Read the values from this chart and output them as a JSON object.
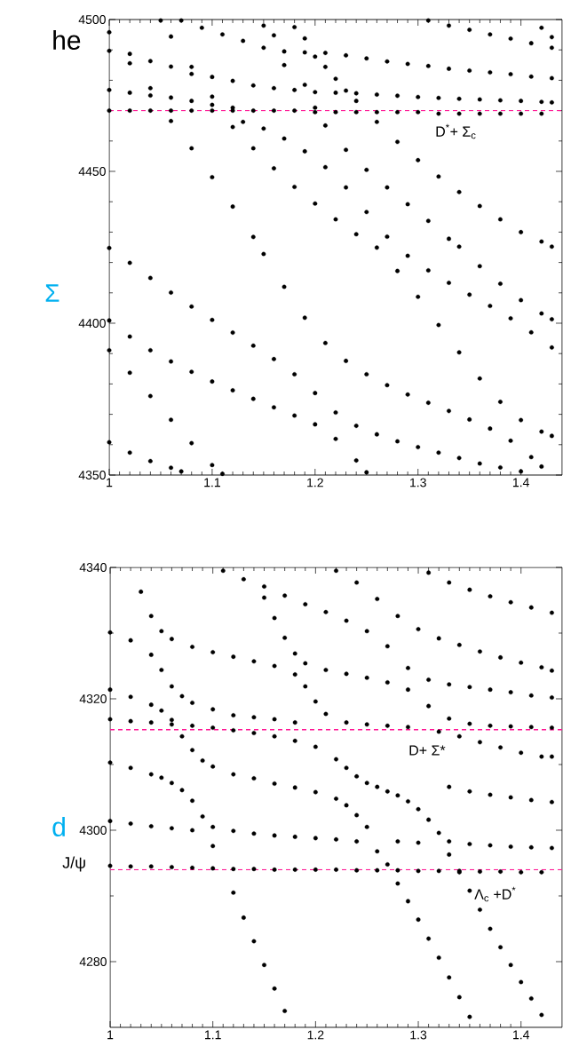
{
  "chart_data": [
    {
      "type": "scatter",
      "xlim": [
        1,
        1.44
      ],
      "ylim": [
        4350,
        4500
      ],
      "xticks": [
        1,
        1.1,
        1.2,
        1.3,
        1.4
      ],
      "yticks": [
        4350,
        4400,
        4450,
        4500
      ],
      "marker": "circle",
      "ref_lines": [
        {
          "axis": "y",
          "value": 4470,
          "color": "#ff1493",
          "line_style": "dashed"
        }
      ],
      "annotations": [
        "D$^{*}$+ Σ$_{c}$",
        "he",
        "Σ"
      ],
      "series": [
        {
          "color": "#000000",
          "x": [
            1,
            1.02,
            1.04,
            1.06,
            1.08,
            1.1,
            1.12,
            1.14,
            1.16,
            1.18,
            1.2,
            1.22,
            1.24,
            1.26,
            1.28,
            1.3,
            1.32,
            1.34,
            1.36,
            1.38,
            1.4,
            1.42
          ],
          "values": [
            4470,
            4470,
            4470,
            4470,
            4470,
            4470,
            4470,
            4470,
            4470,
            4470,
            4469.5,
            4469.5,
            4469.5,
            4469.5,
            4469.5,
            4469.5,
            4469,
            4469,
            4469,
            4469,
            4469,
            4469
          ]
        },
        {
          "color": "#000000",
          "x": [
            1,
            1.02,
            1.04,
            1.06,
            1.08,
            1.1,
            1.12
          ],
          "values": [
            4476.8,
            4475.9,
            4475,
            4474.3,
            4473.2,
            4471.9,
            4471
          ]
        },
        {
          "color": "#000000",
          "x": [
            1,
            1.02,
            1.04,
            1.06,
            1.08,
            1.1,
            1.12,
            1.14,
            1.16,
            1.18,
            1.2,
            1.22,
            1.24,
            1.26,
            1.28,
            1.3,
            1.32,
            1.34,
            1.36,
            1.38,
            1.4,
            1.42,
            1.43
          ],
          "values": [
            4489.7,
            4488.7,
            4486.3,
            4484.5,
            4482.1,
            4481.1,
            4479.8,
            4478.3,
            4477.4,
            4476.8,
            4476.1,
            4475.9,
            4475.7,
            4475.3,
            4474.9,
            4474.5,
            4474.2,
            4473.9,
            4473.7,
            4473.4,
            4473.2,
            4472.9,
            4472.7
          ]
        },
        {
          "color": "#000000",
          "x": [
            1.07,
            1.09,
            1.11,
            1.13,
            1.15,
            1.17,
            1.19,
            1.21,
            1.23,
            1.25,
            1.27,
            1.29,
            1.31,
            1.33,
            1.35,
            1.37,
            1.39,
            1.41,
            1.43
          ],
          "values": [
            4499.7,
            4497.3,
            4495.1,
            4493,
            4490.7,
            4489.5,
            4489.2,
            4489,
            4488.2,
            4487.2,
            4486.2,
            4485.4,
            4484.7,
            4483.8,
            4483.2,
            4482.6,
            4482,
            4481.2,
            4480.7
          ]
        },
        {
          "color": "#000000",
          "x": [
            1.31,
            1.33,
            1.35,
            1.37,
            1.39,
            1.41,
            1.43
          ],
          "values": [
            4499.7,
            4498,
            4496.6,
            4495.1,
            4493.7,
            4492.2,
            4490.7
          ]
        },
        {
          "color": "#000000",
          "x": [
            1.42,
            1.43
          ],
          "values": [
            4497.3,
            4494.2
          ]
        },
        {
          "color": "#000000",
          "x": [
            1,
            1.02,
            1.04,
            1.06,
            1.08,
            1.1,
            1.12,
            1.14,
            1.15,
            1.17,
            1.19,
            1.21,
            1.23,
            1.25,
            1.27,
            1.29,
            1.31,
            1.33,
            1.35,
            1.37,
            1.39,
            1.41,
            1.42
          ],
          "values": [
            4495.8,
            4485.6,
            4477.4,
            4466.6,
            4457.6,
            4448.1,
            4438.4,
            4428.4,
            4422.8,
            4412,
            4401.8,
            4393.5,
            4387.6,
            4383.2,
            4379.6,
            4376.5,
            4373.8,
            4371.1,
            4368.3,
            4365.3,
            4361.3,
            4355.9,
            4352.8
          ]
        },
        {
          "color": "#000000",
          "x": [
            1.05,
            1.06,
            1.08,
            1.1,
            1.12,
            1.14,
            1.16,
            1.18,
            1.2,
            1.22,
            1.24,
            1.26,
            1.28,
            1.3,
            1.32,
            1.34,
            1.36,
            1.38,
            1.4,
            1.42,
            1.43
          ],
          "values": [
            4499.7,
            4494.4,
            4484.4,
            4474.6,
            4464.6,
            4457.6,
            4451,
            4444.9,
            4439.4,
            4434.2,
            4429.3,
            4424.9,
            4417.2,
            4408.7,
            4399.4,
            4390.4,
            4381.8,
            4374.1,
            4368.1,
            4364.3,
            4362.9
          ]
        },
        {
          "color": "#000000",
          "x": [
            1.13,
            1.15,
            1.17,
            1.19,
            1.21,
            1.23,
            1.25,
            1.27,
            1.29,
            1.31,
            1.33,
            1.35,
            1.37,
            1.39,
            1.41,
            1.43
          ],
          "values": [
            4466.3,
            4464.1,
            4460.8,
            4456.6,
            4451.4,
            4444.7,
            4436.6,
            4428.5,
            4422.2,
            4417.4,
            4413.3,
            4409.4,
            4405.7,
            4401.6,
            4397,
            4392
          ]
        },
        {
          "color": "#000000",
          "x": [
            1.2,
            1.21,
            1.23,
            1.25,
            1.27,
            1.29,
            1.31,
            1.33,
            1.34,
            1.36,
            1.38,
            1.4,
            1.42,
            1.43
          ],
          "values": [
            4471,
            4465.1,
            4457.1,
            4450.5,
            4444.7,
            4439.2,
            4433.7,
            4427.8,
            4425.2,
            4418.8,
            4413,
            4407.6,
            4403.2,
            4401.3
          ]
        },
        {
          "color": "#000000",
          "x": [
            1.26,
            1.28,
            1.3,
            1.32,
            1.34,
            1.36,
            1.38,
            1.4,
            1.42,
            1.43
          ],
          "values": [
            4466.3,
            4459.7,
            4453.7,
            4448.3,
            4443.2,
            4438.6,
            4434.2,
            4430,
            4426.9,
            4425.2
          ]
        },
        {
          "color": "#000000",
          "x": [
            1,
            1.02,
            1.04,
            1.06,
            1.08,
            1.1,
            1.12,
            1.14,
            1.16,
            1.18,
            1.2,
            1.22,
            1.24,
            1.26,
            1.28,
            1.3,
            1.32,
            1.34,
            1.36,
            1.38,
            1.4
          ],
          "values": [
            4424.8,
            4419.9,
            4414.9,
            4410.1,
            4405.5,
            4401.1,
            4396.9,
            4392.6,
            4388.2,
            4383.2,
            4377,
            4370.6,
            4366.2,
            4363.4,
            4361.1,
            4359.2,
            4357.4,
            4355.6,
            4353.8,
            4352.5,
            4351.2
          ]
        },
        {
          "color": "#000000",
          "x": [
            1,
            1.02,
            1.04,
            1.06,
            1.08,
            1.1,
            1.12,
            1.14,
            1.16,
            1.18,
            1.2,
            1.22,
            1.24,
            1.25
          ],
          "values": [
            4400.9,
            4395.6,
            4391.1,
            4387.4,
            4384,
            4380.8,
            4377.9,
            4375.1,
            4372.3,
            4369.6,
            4366.7,
            4361.9,
            4354.8,
            4350.9
          ]
        },
        {
          "color": "#000000",
          "x": [
            1,
            1.02,
            1.04,
            1.06,
            1.08,
            1.1,
            1.11
          ],
          "values": [
            4391.1,
            4383.7,
            4376,
            4368.2,
            4360.5,
            4353.3,
            4350.4
          ]
        },
        {
          "color": "#000000",
          "x": [
            1,
            1.02,
            1.04,
            1.06,
            1.07
          ],
          "values": [
            4360.8,
            4357.4,
            4354.6,
            4352.4,
            4351.2
          ]
        },
        {
          "color": "#000000",
          "x": [
            1.18,
            1.19,
            1.2,
            1.21,
            1.22,
            1.23,
            1.24
          ],
          "values": [
            4497.5,
            4493.8,
            4487.8,
            4484.4,
            4480.5,
            4476.6,
            4473.2
          ]
        },
        {
          "color": "#000000",
          "x": [
            1.15,
            1.16,
            1.17,
            1.19
          ],
          "values": [
            4498,
            4494.8,
            4485,
            4478.5
          ]
        }
      ]
    },
    {
      "type": "scatter",
      "xlim": [
        1,
        1.44
      ],
      "ylim": [
        4270,
        4340
      ],
      "xticks": [
        1,
        1.1,
        1.2,
        1.3,
        1.4
      ],
      "yticks": [
        4280,
        4300,
        4320,
        4340
      ],
      "marker": "circle",
      "ref_lines": [
        {
          "axis": "y",
          "value": 4315.3,
          "color": "#ff1493",
          "line_style": "dashed"
        },
        {
          "axis": "y",
          "value": 4294,
          "color": "#ff1493",
          "line_style": "dashed"
        }
      ],
      "annotations": [
        "D+ Σ*",
        "Λ$_{c}$ +D$^{*}$",
        "d",
        "J/ψ"
      ],
      "series": [
        {
          "color": "#000000",
          "x": [
            1,
            1.02,
            1.04,
            1.06,
            1.08,
            1.1,
            1.12,
            1.14,
            1.16,
            1.18,
            1.2,
            1.22,
            1.24,
            1.26,
            1.28,
            1.3,
            1.32,
            1.34,
            1.36,
            1.38,
            1.4,
            1.42
          ],
          "values": [
            4294.6,
            4294.5,
            4294.5,
            4294.4,
            4294.3,
            4294.2,
            4294.1,
            4294.1,
            4294,
            4294,
            4294,
            4294,
            4293.9,
            4293.9,
            4293.9,
            4293.8,
            4293.8,
            4293.8,
            4293.7,
            4293.7,
            4293.6,
            4293.6
          ]
        },
        {
          "color": "#000000",
          "x": [
            1,
            1.02,
            1.04,
            1.06,
            1.08,
            1.1,
            1.12,
            1.14,
            1.16,
            1.18,
            1.2,
            1.22,
            1.24,
            1.28,
            1.3,
            1.33,
            1.35,
            1.37,
            1.39,
            1.41,
            1.43
          ],
          "values": [
            4301.4,
            4301,
            4300.6,
            4300.3,
            4300,
            4300.5,
            4299.9,
            4299.5,
            4299.2,
            4299,
            4298.8,
            4298.6,
            4298.3,
            4298.3,
            4298.1,
            4298.3,
            4297.9,
            4297.7,
            4297.5,
            4297.4,
            4297.3
          ]
        },
        {
          "color": "#000000",
          "x": [
            1.11,
            1.13,
            1.15,
            1.17,
            1.19,
            1.21,
            1.23,
            1.25,
            1.27,
            1.29,
            1.31,
            1.33,
            1.35,
            1.37,
            1.39,
            1.41,
            1.43
          ],
          "values": [
            4339.5,
            4338.2,
            4337.1,
            4335.7,
            4334.4,
            4333.2,
            4331.9,
            4330.3,
            4328,
            4324.7,
            4322.9,
            4322.2,
            4321.8,
            4321.4,
            4321,
            4320.5,
            4320.2
          ]
        },
        {
          "color": "#000000",
          "x": [
            1.22,
            1.24,
            1.26,
            1.28,
            1.3,
            1.32,
            1.34,
            1.36,
            1.38,
            1.4,
            1.42,
            1.43
          ],
          "values": [
            4339.5,
            4337.7,
            4335.2,
            4332.6,
            4330.6,
            4329.2,
            4328.2,
            4327.2,
            4326.3,
            4325.5,
            4324.8,
            4324.3
          ]
        },
        {
          "color": "#000000",
          "x": [
            1.31,
            1.33,
            1.35,
            1.37,
            1.39,
            1.41,
            1.43
          ],
          "values": [
            4339.2,
            4337.7,
            4336.6,
            4335.6,
            4334.7,
            4333.9,
            4333.1
          ]
        },
        {
          "color": "#000000",
          "x": [
            1.03,
            1.04,
            1.05,
            1.06,
            1.08,
            1.1,
            1.12,
            1.14,
            1.16,
            1.18,
            1.19,
            1.2,
            1.21,
            1.23,
            1.25,
            1.27,
            1.29
          ],
          "values": [
            4336.3,
            4332.6,
            4330.3,
            4329.1,
            4327.9,
            4327.1,
            4326.4,
            4325.7,
            4325,
            4323.7,
            4321.9,
            4319.6,
            4317.7,
            4316.4,
            4316.1,
            4315.9,
            4315.7
          ]
        },
        {
          "color": "#000000",
          "x": [
            1.15,
            1.16,
            1.17,
            1.18,
            1.19,
            1.21,
            1.23,
            1.25,
            1.27,
            1.29,
            1.31,
            1.33,
            1.35,
            1.37,
            1.39,
            1.41,
            1.43
          ],
          "values": [
            4335.4,
            4332.3,
            4329.3,
            4326.9,
            4325.4,
            4324.4,
            4323.8,
            4323.2,
            4322.5,
            4321.4,
            4318.9,
            4317,
            4316.2,
            4315.9,
            4315.8,
            4315.7,
            4315.6
          ]
        },
        {
          "color": "#000000",
          "x": [
            1,
            1.02,
            1.04,
            1.05,
            1.06,
            1.07,
            1.08,
            1.1,
            1.12,
            1.14,
            1.16,
            1.18
          ],
          "values": [
            4330.1,
            4328.9,
            4326.7,
            4324.4,
            4321.9,
            4320.4,
            4319.4,
            4318.4,
            4317.5,
            4317.2,
            4316.9,
            4316.4
          ]
        },
        {
          "color": "#000000",
          "x": [
            1,
            1.02,
            1.04,
            1.05,
            1.06,
            1.07,
            1.08,
            1.09,
            1.1,
            1.12,
            1.14,
            1.16,
            1.18,
            1.2,
            1.22,
            1.23,
            1.24,
            1.25,
            1.26,
            1.27,
            1.28,
            1.29,
            1.3,
            1.31,
            1.32,
            1.33,
            1.34,
            1.35
          ],
          "values": [
            4321.4,
            4320.3,
            4319.1,
            4318.2,
            4316.8,
            4314.3,
            4312.2,
            4310.6,
            4309.7,
            4308.5,
            4307.9,
            4307.1,
            4306.5,
            4305.8,
            4304.8,
            4303.8,
            4302.3,
            4300.5,
            4296.8,
            4294.8,
            4291.9,
            4289.2,
            4286.4,
            4283.5,
            4280.6,
            4277.6,
            4274.6,
            4271.6
          ]
        },
        {
          "color": "#000000",
          "x": [
            1,
            1.02,
            1.04,
            1.06,
            1.08,
            1.1,
            1.12,
            1.14,
            1.16,
            1.18,
            1.2,
            1.22,
            1.23,
            1.24,
            1.25,
            1.26,
            1.27,
            1.28,
            1.29,
            1.3,
            1.31,
            1.32,
            1.33,
            1.34,
            1.35,
            1.36,
            1.37,
            1.38,
            1.39,
            1.4,
            1.41,
            1.42
          ],
          "values": [
            4316.9,
            4316.6,
            4316.4,
            4316.1,
            4315.9,
            4315.6,
            4315.2,
            4314.8,
            4314.3,
            4313.6,
            4312.7,
            4310.8,
            4309.5,
            4308.2,
            4307.2,
            4306.6,
            4305.9,
            4305.3,
            4304.4,
            4303.2,
            4301.6,
            4299.6,
            4296.3,
            4293.6,
            4290.8,
            4287.9,
            4285,
            4282.2,
            4279.5,
            4276.9,
            4274.4,
            4271.9
          ]
        },
        {
          "color": "#000000",
          "x": [
            1.33,
            1.35,
            1.37,
            1.39,
            1.41,
            1.43
          ],
          "values": [
            4306.6,
            4305.9,
            4305.4,
            4305,
            4304.6,
            4304.3
          ]
        },
        {
          "color": "#000000",
          "x": [
            1,
            1.02,
            1.04,
            1.05,
            1.06,
            1.07,
            1.08,
            1.09,
            1.1,
            1.12,
            1.13,
            1.14,
            1.15,
            1.16,
            1.17
          ],
          "values": [
            4310.3,
            4309.5,
            4308.5,
            4308,
            4307.2,
            4306.1,
            4304.5,
            4302.1,
            4297.6,
            4290.5,
            4286.7,
            4283.1,
            4279.5,
            4275.9,
            4272.5
          ]
        },
        {
          "color": "#000000",
          "x": [
            1.32,
            1.34,
            1.36,
            1.38,
            1.4,
            1.42,
            1.43
          ],
          "values": [
            4315,
            4314.3,
            4313.4,
            4312.6,
            4311.8,
            4311.2,
            4311.2
          ]
        }
      ]
    }
  ]
}
